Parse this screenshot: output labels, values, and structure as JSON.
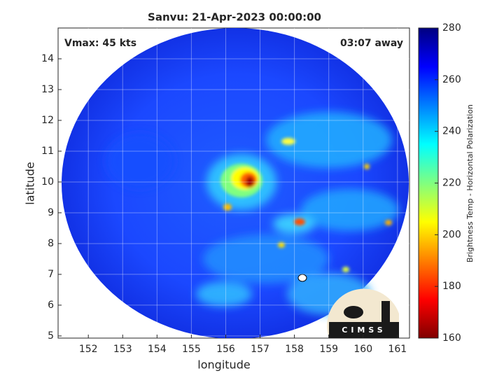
{
  "title": "Sanvu: 21-Apr-2023 00:00:00",
  "annotations": {
    "intensity": "Vmax: 45 kts",
    "time_offset": "03:07 away",
    "logo": "CIMSS"
  },
  "chart_data": {
    "type": "image",
    "xlabel": "longitude",
    "ylabel": "latitude",
    "xlim": [
      151.12,
      161.35
    ],
    "ylim": [
      4.93,
      15
    ],
    "xticks": [
      152,
      153,
      154,
      155,
      156,
      157,
      158,
      159,
      160,
      161
    ],
    "yticks": [
      5,
      6,
      7,
      8,
      9,
      10,
      11,
      12,
      13,
      14
    ],
    "grid": true,
    "colorbar": {
      "label": "Brightness Temp - Horizontal Polarization",
      "colormap": "jet",
      "clim": [
        160,
        280
      ],
      "ticks": [
        160,
        180,
        200,
        220,
        240,
        260,
        280
      ]
    }
  }
}
